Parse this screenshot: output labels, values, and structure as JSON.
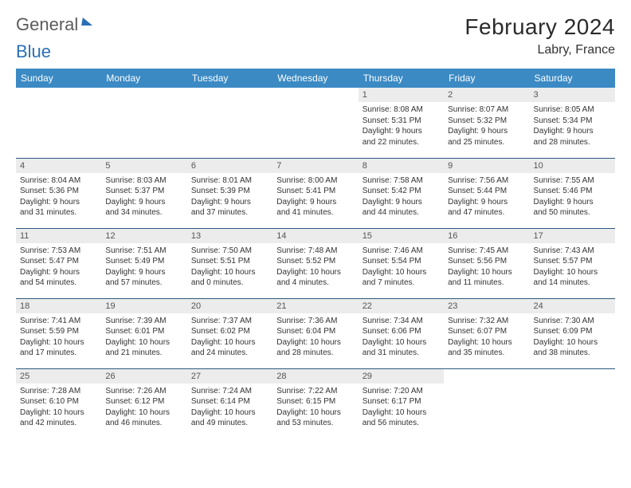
{
  "brand": {
    "word1": "General",
    "word2": "Blue"
  },
  "title": "February 2024",
  "subtitle": "Labry, France",
  "colors": {
    "header_bg": "#3b8ac4",
    "header_text": "#ffffff",
    "row_border": "#2c5a82",
    "daynum_bg": "#ececec",
    "body_bg": "#ffffff",
    "brand_gray": "#5b5b5b",
    "brand_blue": "#2a6fb5"
  },
  "weekdays": [
    "Sunday",
    "Monday",
    "Tuesday",
    "Wednesday",
    "Thursday",
    "Friday",
    "Saturday"
  ],
  "weeks": [
    [
      null,
      null,
      null,
      null,
      {
        "n": "1",
        "sunrise": "Sunrise: 8:08 AM",
        "sunset": "Sunset: 5:31 PM",
        "day1": "Daylight: 9 hours",
        "day2": "and 22 minutes."
      },
      {
        "n": "2",
        "sunrise": "Sunrise: 8:07 AM",
        "sunset": "Sunset: 5:32 PM",
        "day1": "Daylight: 9 hours",
        "day2": "and 25 minutes."
      },
      {
        "n": "3",
        "sunrise": "Sunrise: 8:05 AM",
        "sunset": "Sunset: 5:34 PM",
        "day1": "Daylight: 9 hours",
        "day2": "and 28 minutes."
      }
    ],
    [
      {
        "n": "4",
        "sunrise": "Sunrise: 8:04 AM",
        "sunset": "Sunset: 5:36 PM",
        "day1": "Daylight: 9 hours",
        "day2": "and 31 minutes."
      },
      {
        "n": "5",
        "sunrise": "Sunrise: 8:03 AM",
        "sunset": "Sunset: 5:37 PM",
        "day1": "Daylight: 9 hours",
        "day2": "and 34 minutes."
      },
      {
        "n": "6",
        "sunrise": "Sunrise: 8:01 AM",
        "sunset": "Sunset: 5:39 PM",
        "day1": "Daylight: 9 hours",
        "day2": "and 37 minutes."
      },
      {
        "n": "7",
        "sunrise": "Sunrise: 8:00 AM",
        "sunset": "Sunset: 5:41 PM",
        "day1": "Daylight: 9 hours",
        "day2": "and 41 minutes."
      },
      {
        "n": "8",
        "sunrise": "Sunrise: 7:58 AM",
        "sunset": "Sunset: 5:42 PM",
        "day1": "Daylight: 9 hours",
        "day2": "and 44 minutes."
      },
      {
        "n": "9",
        "sunrise": "Sunrise: 7:56 AM",
        "sunset": "Sunset: 5:44 PM",
        "day1": "Daylight: 9 hours",
        "day2": "and 47 minutes."
      },
      {
        "n": "10",
        "sunrise": "Sunrise: 7:55 AM",
        "sunset": "Sunset: 5:46 PM",
        "day1": "Daylight: 9 hours",
        "day2": "and 50 minutes."
      }
    ],
    [
      {
        "n": "11",
        "sunrise": "Sunrise: 7:53 AM",
        "sunset": "Sunset: 5:47 PM",
        "day1": "Daylight: 9 hours",
        "day2": "and 54 minutes."
      },
      {
        "n": "12",
        "sunrise": "Sunrise: 7:51 AM",
        "sunset": "Sunset: 5:49 PM",
        "day1": "Daylight: 9 hours",
        "day2": "and 57 minutes."
      },
      {
        "n": "13",
        "sunrise": "Sunrise: 7:50 AM",
        "sunset": "Sunset: 5:51 PM",
        "day1": "Daylight: 10 hours",
        "day2": "and 0 minutes."
      },
      {
        "n": "14",
        "sunrise": "Sunrise: 7:48 AM",
        "sunset": "Sunset: 5:52 PM",
        "day1": "Daylight: 10 hours",
        "day2": "and 4 minutes."
      },
      {
        "n": "15",
        "sunrise": "Sunrise: 7:46 AM",
        "sunset": "Sunset: 5:54 PM",
        "day1": "Daylight: 10 hours",
        "day2": "and 7 minutes."
      },
      {
        "n": "16",
        "sunrise": "Sunrise: 7:45 AM",
        "sunset": "Sunset: 5:56 PM",
        "day1": "Daylight: 10 hours",
        "day2": "and 11 minutes."
      },
      {
        "n": "17",
        "sunrise": "Sunrise: 7:43 AM",
        "sunset": "Sunset: 5:57 PM",
        "day1": "Daylight: 10 hours",
        "day2": "and 14 minutes."
      }
    ],
    [
      {
        "n": "18",
        "sunrise": "Sunrise: 7:41 AM",
        "sunset": "Sunset: 5:59 PM",
        "day1": "Daylight: 10 hours",
        "day2": "and 17 minutes."
      },
      {
        "n": "19",
        "sunrise": "Sunrise: 7:39 AM",
        "sunset": "Sunset: 6:01 PM",
        "day1": "Daylight: 10 hours",
        "day2": "and 21 minutes."
      },
      {
        "n": "20",
        "sunrise": "Sunrise: 7:37 AM",
        "sunset": "Sunset: 6:02 PM",
        "day1": "Daylight: 10 hours",
        "day2": "and 24 minutes."
      },
      {
        "n": "21",
        "sunrise": "Sunrise: 7:36 AM",
        "sunset": "Sunset: 6:04 PM",
        "day1": "Daylight: 10 hours",
        "day2": "and 28 minutes."
      },
      {
        "n": "22",
        "sunrise": "Sunrise: 7:34 AM",
        "sunset": "Sunset: 6:06 PM",
        "day1": "Daylight: 10 hours",
        "day2": "and 31 minutes."
      },
      {
        "n": "23",
        "sunrise": "Sunrise: 7:32 AM",
        "sunset": "Sunset: 6:07 PM",
        "day1": "Daylight: 10 hours",
        "day2": "and 35 minutes."
      },
      {
        "n": "24",
        "sunrise": "Sunrise: 7:30 AM",
        "sunset": "Sunset: 6:09 PM",
        "day1": "Daylight: 10 hours",
        "day2": "and 38 minutes."
      }
    ],
    [
      {
        "n": "25",
        "sunrise": "Sunrise: 7:28 AM",
        "sunset": "Sunset: 6:10 PM",
        "day1": "Daylight: 10 hours",
        "day2": "and 42 minutes."
      },
      {
        "n": "26",
        "sunrise": "Sunrise: 7:26 AM",
        "sunset": "Sunset: 6:12 PM",
        "day1": "Daylight: 10 hours",
        "day2": "and 46 minutes."
      },
      {
        "n": "27",
        "sunrise": "Sunrise: 7:24 AM",
        "sunset": "Sunset: 6:14 PM",
        "day1": "Daylight: 10 hours",
        "day2": "and 49 minutes."
      },
      {
        "n": "28",
        "sunrise": "Sunrise: 7:22 AM",
        "sunset": "Sunset: 6:15 PM",
        "day1": "Daylight: 10 hours",
        "day2": "and 53 minutes."
      },
      {
        "n": "29",
        "sunrise": "Sunrise: 7:20 AM",
        "sunset": "Sunset: 6:17 PM",
        "day1": "Daylight: 10 hours",
        "day2": "and 56 minutes."
      },
      null,
      null
    ]
  ]
}
